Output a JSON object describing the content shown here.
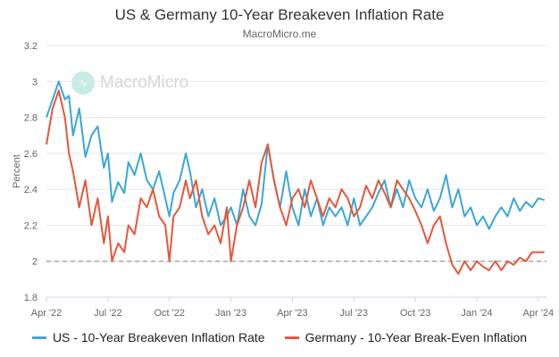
{
  "chart_data": {
    "type": "line",
    "title": "US & Germany 10-Year Breakeven Inflation Rate",
    "subtitle": "MacroMicro.me",
    "watermark": "MacroMicro",
    "ylabel": "Percent",
    "xlabel": "",
    "ylim": [
      1.8,
      3.2
    ],
    "yticks": [
      "1.8",
      "2",
      "2.2",
      "2.4",
      "2.6",
      "2.8",
      "3",
      "3.2"
    ],
    "x_tick_labels": [
      "Apr '22",
      "Jul '22",
      "Oct '22",
      "Jan '23",
      "Apr '23",
      "Jul '23",
      "Oct '23",
      "Jan '24",
      "Apr '24"
    ],
    "x_tick_months": [
      0,
      3,
      6,
      9,
      12,
      15,
      18,
      21,
      24
    ],
    "x_range_months": [
      0,
      24.4
    ],
    "reference_line": 2.0,
    "grid": true,
    "legend_position": "bottom",
    "series": [
      {
        "name": "US - 10-Year Breakeven Inflation Rate",
        "color": "#3aa7d5",
        "x": [
          0,
          0.3,
          0.6,
          0.9,
          1.1,
          1.3,
          1.6,
          1.9,
          2.2,
          2.5,
          2.8,
          3.0,
          3.2,
          3.5,
          3.8,
          4.0,
          4.3,
          4.6,
          4.9,
          5.2,
          5.5,
          5.8,
          6.0,
          6.2,
          6.5,
          6.8,
          7.0,
          7.3,
          7.6,
          7.9,
          8.2,
          8.5,
          8.8,
          9.0,
          9.3,
          9.6,
          9.9,
          10.2,
          10.5,
          10.8,
          11.1,
          11.4,
          11.7,
          12.0,
          12.3,
          12.6,
          12.9,
          13.2,
          13.5,
          13.8,
          14.1,
          14.4,
          14.7,
          15.0,
          15.3,
          15.6,
          15.9,
          16.2,
          16.5,
          16.8,
          17.1,
          17.4,
          17.7,
          18.0,
          18.3,
          18.6,
          18.9,
          19.2,
          19.5,
          19.8,
          20.1,
          20.4,
          20.7,
          21.0,
          21.3,
          21.6,
          21.9,
          22.2,
          22.5,
          22.8,
          23.1,
          23.4,
          23.7,
          24.0,
          24.3
        ],
        "values": [
          2.8,
          2.9,
          3.0,
          2.9,
          2.92,
          2.7,
          2.85,
          2.58,
          2.7,
          2.75,
          2.52,
          2.6,
          2.33,
          2.44,
          2.38,
          2.55,
          2.48,
          2.6,
          2.45,
          2.4,
          2.5,
          2.35,
          2.25,
          2.38,
          2.45,
          2.6,
          2.5,
          2.3,
          2.4,
          2.25,
          2.35,
          2.2,
          2.25,
          2.3,
          2.2,
          2.4,
          2.25,
          2.2,
          2.32,
          2.65,
          2.45,
          2.3,
          2.5,
          2.3,
          2.2,
          2.4,
          2.25,
          2.35,
          2.2,
          2.3,
          2.25,
          2.3,
          2.2,
          2.35,
          2.2,
          2.25,
          2.3,
          2.38,
          2.45,
          2.3,
          2.4,
          2.3,
          2.45,
          2.35,
          2.3,
          2.4,
          2.28,
          2.35,
          2.48,
          2.3,
          2.4,
          2.25,
          2.3,
          2.2,
          2.25,
          2.18,
          2.25,
          2.3,
          2.25,
          2.35,
          2.28,
          2.33,
          2.3,
          2.35,
          2.34
        ]
      },
      {
        "name": "Germany - 10-Year Break-Even Inflation",
        "color": "#e5573d",
        "x": [
          0,
          0.3,
          0.6,
          0.9,
          1.1,
          1.3,
          1.6,
          1.9,
          2.2,
          2.5,
          2.8,
          3.0,
          3.2,
          3.5,
          3.8,
          4.0,
          4.3,
          4.6,
          4.9,
          5.2,
          5.5,
          5.8,
          6.0,
          6.2,
          6.5,
          6.8,
          7.0,
          7.3,
          7.6,
          7.9,
          8.2,
          8.5,
          8.8,
          9.0,
          9.3,
          9.6,
          9.9,
          10.2,
          10.5,
          10.8,
          11.1,
          11.4,
          11.7,
          12.0,
          12.3,
          12.6,
          12.9,
          13.2,
          13.5,
          13.8,
          14.1,
          14.4,
          14.7,
          15.0,
          15.3,
          15.6,
          15.9,
          16.2,
          16.5,
          16.8,
          17.1,
          17.4,
          17.7,
          18.0,
          18.3,
          18.6,
          18.9,
          19.2,
          19.5,
          19.8,
          20.1,
          20.4,
          20.7,
          21.0,
          21.3,
          21.6,
          21.9,
          22.2,
          22.5,
          22.8,
          23.1,
          23.4,
          23.7,
          24.0,
          24.3
        ],
        "values": [
          2.65,
          2.85,
          2.95,
          2.8,
          2.6,
          2.5,
          2.3,
          2.45,
          2.2,
          2.35,
          2.1,
          2.25,
          2.0,
          2.1,
          2.05,
          2.2,
          2.15,
          2.35,
          2.3,
          2.4,
          2.25,
          2.2,
          2.0,
          2.25,
          2.3,
          2.45,
          2.35,
          2.45,
          2.25,
          2.15,
          2.2,
          2.1,
          2.3,
          2.0,
          2.2,
          2.3,
          2.45,
          2.3,
          2.55,
          2.65,
          2.45,
          2.3,
          2.2,
          2.35,
          2.4,
          2.3,
          2.45,
          2.35,
          2.25,
          2.35,
          2.3,
          2.4,
          2.35,
          2.25,
          2.3,
          2.42,
          2.35,
          2.45,
          2.38,
          2.3,
          2.45,
          2.4,
          2.35,
          2.28,
          2.2,
          2.1,
          2.2,
          2.25,
          2.1,
          1.98,
          1.93,
          2.0,
          1.95,
          2.0,
          1.97,
          1.95,
          2.0,
          1.95,
          2.0,
          1.98,
          2.02,
          2.0,
          2.05,
          2.05,
          2.05
        ]
      }
    ]
  }
}
